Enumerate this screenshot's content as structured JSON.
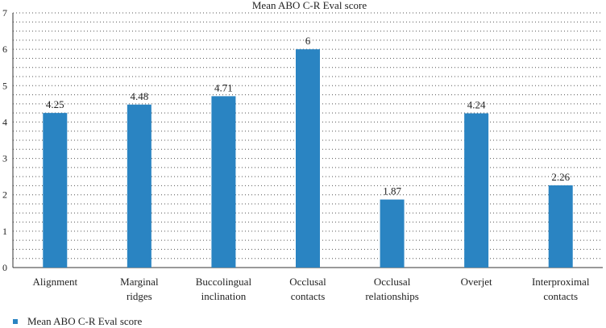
{
  "chart_data": {
    "type": "bar",
    "title": "Mean ABO C-R Eval score",
    "xlabel": "",
    "ylabel": "",
    "ylim": [
      0,
      7
    ],
    "yticks": [
      "0",
      "1",
      "2",
      "3",
      "4",
      "5",
      "6",
      "7"
    ],
    "categories": [
      [
        "Alignment"
      ],
      [
        "Marginal",
        "ridges"
      ],
      [
        "Buccolingual",
        "inclination"
      ],
      [
        "Occlusal",
        "contacts"
      ],
      [
        "Occlusal",
        "relationships"
      ],
      [
        "Overjet"
      ],
      [
        "Interproximal",
        "contacts"
      ]
    ],
    "series": [
      {
        "name": "Mean ABO C-R Eval score",
        "values": [
          4.25,
          4.48,
          4.71,
          6,
          1.87,
          4.24,
          2.26
        ],
        "labels": [
          "4.25",
          "4.48",
          "4.71",
          "6",
          "1.87",
          "4.24",
          "2.26"
        ],
        "color": "#2a84c2"
      }
    ],
    "grid": "dotted horizontal",
    "legend_position": "bottom-left"
  }
}
